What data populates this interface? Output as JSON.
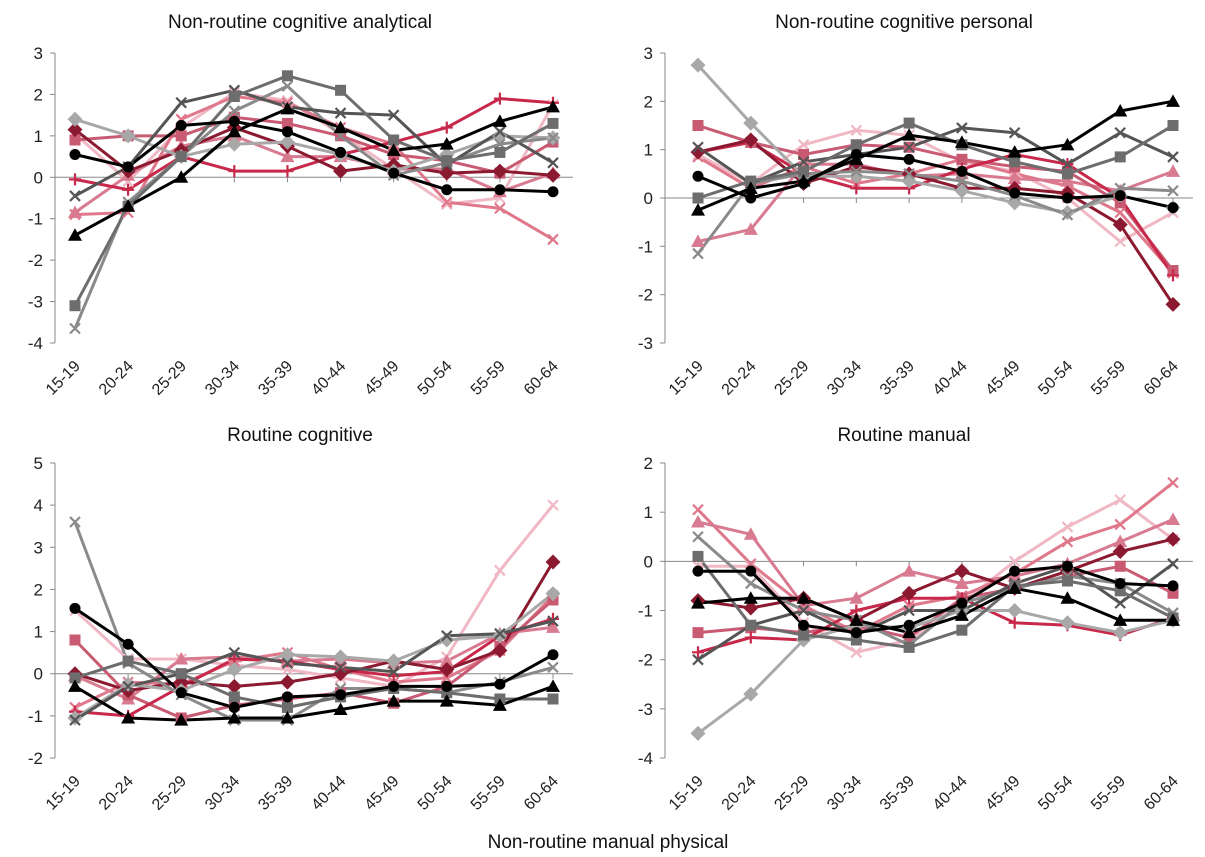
{
  "figure": {
    "bottom_caption": "Non-routine manual physical"
  },
  "chart_data": [
    {
      "type": "line",
      "title": "Non-routine cognitive analytical",
      "xlabel": "",
      "ylabel": "",
      "ylim": [
        -4,
        3
      ],
      "yticks": [
        "-4",
        "-3",
        "-2",
        "-1",
        "0",
        "1",
        "2",
        "3"
      ],
      "categories": [
        "15-19",
        "20-24",
        "25-29",
        "30-34",
        "35-39",
        "40-44",
        "45-49",
        "50-54",
        "55-59",
        "60-64"
      ],
      "grid": false,
      "series": [
        {
          "color": "#000000",
          "marker": "circle",
          "values": [
            0.55,
            0.25,
            1.25,
            1.35,
            1.1,
            0.6,
            0.1,
            -0.3,
            -0.3,
            -0.35
          ]
        },
        {
          "color": "#000000",
          "marker": "triangle",
          "values": [
            -1.4,
            -0.7,
            0.0,
            1.1,
            1.65,
            1.2,
            0.65,
            0.8,
            1.35,
            1.7
          ]
        },
        {
          "color": "#6d6d6d",
          "marker": "square",
          "values": [
            -3.1,
            -0.7,
            0.5,
            1.95,
            2.45,
            2.1,
            0.9,
            0.4,
            0.6,
            1.3
          ]
        },
        {
          "color": "#555555",
          "marker": "x",
          "values": [
            -0.45,
            0.25,
            1.8,
            2.1,
            1.7,
            1.55,
            1.5,
            0.3,
            1.1,
            0.35
          ]
        },
        {
          "color": "#8a8a8a",
          "marker": "x",
          "values": [
            -3.65,
            -0.6,
            0.5,
            1.6,
            2.2,
            1.0,
            0.05,
            0.35,
            0.8,
            0.95
          ]
        },
        {
          "color": "#a8a8a8",
          "marker": "diamond",
          "values": [
            1.4,
            1.0,
            0.5,
            0.8,
            0.85,
            0.55,
            0.15,
            0.55,
            1.0,
            0.95
          ]
        },
        {
          "color": "#8b1a30",
          "marker": "diamond",
          "values": [
            1.15,
            0.15,
            0.65,
            1.2,
            0.75,
            0.15,
            0.3,
            0.1,
            0.15,
            0.05
          ]
        },
        {
          "color": "#c8284a",
          "marker": "plus",
          "values": [
            -0.05,
            -0.3,
            0.5,
            0.15,
            0.15,
            0.55,
            0.85,
            1.2,
            1.9,
            1.8
          ]
        },
        {
          "color": "#c85a72",
          "marker": "square",
          "values": [
            0.9,
            1.0,
            1.0,
            1.45,
            1.3,
            1.0,
            0.55,
            0.4,
            0.1,
            0.85
          ]
        },
        {
          "color": "#d87a90",
          "marker": "triangle",
          "values": [
            -0.85,
            0.05,
            0.75,
            1.0,
            0.5,
            0.5,
            0.2,
            0.2,
            -0.35,
            0.1
          ]
        },
        {
          "color": "#e0788c",
          "marker": "x",
          "values": [
            -0.9,
            -0.85,
            1.4,
            1.95,
            1.8,
            1.2,
            0.8,
            -0.6,
            -0.75,
            -1.5
          ]
        },
        {
          "color": "#f0b8c4",
          "marker": "x",
          "values": [
            1.05,
            -0.1,
            1.2,
            2.05,
            1.85,
            1.05,
            0.2,
            -0.65,
            -0.5,
            1.75
          ]
        }
      ]
    },
    {
      "type": "line",
      "title": "Non-routine cognitive personal",
      "xlabel": "",
      "ylabel": "",
      "ylim": [
        -3,
        3
      ],
      "yticks": [
        "-3",
        "-2",
        "-1",
        "0",
        "1",
        "2",
        "3"
      ],
      "categories": [
        "15-19",
        "20-24",
        "25-29",
        "30-34",
        "35-39",
        "40-44",
        "45-49",
        "50-54",
        "55-59",
        "60-64"
      ],
      "grid": false,
      "series": [
        {
          "color": "#000000",
          "marker": "circle",
          "values": [
            0.45,
            0.0,
            0.3,
            0.9,
            0.8,
            0.55,
            0.1,
            0.0,
            0.05,
            -0.2
          ]
        },
        {
          "color": "#000000",
          "marker": "triangle",
          "values": [
            -0.25,
            0.2,
            0.35,
            0.8,
            1.3,
            1.15,
            0.95,
            1.1,
            1.8,
            2.0
          ]
        },
        {
          "color": "#6d6d6d",
          "marker": "square",
          "values": [
            0.0,
            0.35,
            0.55,
            1.1,
            1.55,
            1.1,
            0.75,
            0.5,
            0.85,
            1.5
          ]
        },
        {
          "color": "#555555",
          "marker": "x",
          "values": [
            1.05,
            0.3,
            0.75,
            0.9,
            1.05,
            1.45,
            1.35,
            0.7,
            1.35,
            0.85
          ]
        },
        {
          "color": "#8a8a8a",
          "marker": "x",
          "values": [
            -1.15,
            0.3,
            0.5,
            0.55,
            0.5,
            0.35,
            0.05,
            -0.35,
            0.2,
            0.15
          ]
        },
        {
          "color": "#a8a8a8",
          "marker": "diamond",
          "values": [
            2.75,
            1.55,
            0.45,
            0.45,
            0.35,
            0.15,
            -0.1,
            -0.3,
            0.05,
            -0.2
          ]
        },
        {
          "color": "#8b1a30",
          "marker": "diamond",
          "values": [
            0.95,
            1.2,
            0.3,
            0.65,
            0.5,
            0.2,
            0.2,
            0.1,
            -0.55,
            -2.2
          ]
        },
        {
          "color": "#c8284a",
          "marker": "plus",
          "values": [
            0.95,
            1.15,
            0.5,
            0.2,
            0.2,
            0.6,
            0.9,
            0.7,
            0.0,
            -1.6
          ]
        },
        {
          "color": "#c85a72",
          "marker": "square",
          "values": [
            1.5,
            1.15,
            0.9,
            1.1,
            1.05,
            0.8,
            0.65,
            0.55,
            -0.1,
            -1.5
          ]
        },
        {
          "color": "#d87a90",
          "marker": "triangle",
          "values": [
            -0.9,
            -0.65,
            0.7,
            0.7,
            0.45,
            0.5,
            0.4,
            0.35,
            0.15,
            0.55
          ]
        },
        {
          "color": "#e0788c",
          "marker": "x",
          "values": [
            0.85,
            0.2,
            0.65,
            0.3,
            0.5,
            0.8,
            0.5,
            0.25,
            -0.3,
            -1.55
          ]
        },
        {
          "color": "#f0b8c4",
          "marker": "x",
          "values": [
            0.9,
            0.3,
            1.1,
            1.4,
            1.3,
            0.75,
            0.55,
            0.0,
            -0.9,
            -0.3
          ]
        }
      ]
    },
    {
      "type": "line",
      "title": "Routine cognitive",
      "xlabel": "",
      "ylabel": "",
      "ylim": [
        -2,
        5
      ],
      "yticks": [
        "-2",
        "-1",
        "0",
        "1",
        "2",
        "3",
        "4",
        "5"
      ],
      "categories": [
        "15-19",
        "20-24",
        "25-29",
        "30-34",
        "35-39",
        "40-44",
        "45-49",
        "50-54",
        "55-59",
        "60-64"
      ],
      "grid": false,
      "series": [
        {
          "color": "#000000",
          "marker": "circle",
          "values": [
            1.55,
            0.7,
            -0.45,
            -0.8,
            -0.55,
            -0.5,
            -0.3,
            -0.3,
            -0.25,
            0.45
          ]
        },
        {
          "color": "#000000",
          "marker": "triangle",
          "values": [
            -0.3,
            -1.05,
            -1.1,
            -1.05,
            -1.05,
            -0.85,
            -0.65,
            -0.65,
            -0.75,
            -0.3
          ]
        },
        {
          "color": "#6d6d6d",
          "marker": "square",
          "values": [
            -0.1,
            0.3,
            0.0,
            -0.55,
            -0.8,
            -0.55,
            -0.35,
            -0.45,
            -0.6,
            -0.6
          ]
        },
        {
          "color": "#555555",
          "marker": "x",
          "values": [
            -1.1,
            -0.3,
            0.0,
            0.5,
            0.25,
            0.15,
            0.05,
            0.9,
            0.95,
            1.25
          ]
        },
        {
          "color": "#8a8a8a",
          "marker": "x",
          "values": [
            3.6,
            0.25,
            -0.5,
            -1.1,
            -1.1,
            -0.35,
            -0.35,
            -0.45,
            -0.2,
            0.15
          ]
        },
        {
          "color": "#a8a8a8",
          "marker": "diamond",
          "values": [
            -1.05,
            -0.25,
            -0.4,
            0.1,
            0.45,
            0.4,
            0.3,
            0.8,
            0.9,
            1.9
          ]
        },
        {
          "color": "#8b1a30",
          "marker": "diamond",
          "values": [
            0.0,
            -0.4,
            -0.2,
            -0.3,
            -0.2,
            0.0,
            0.3,
            0.1,
            0.55,
            2.65
          ]
        },
        {
          "color": "#c8284a",
          "marker": "plus",
          "values": [
            -0.9,
            -1.0,
            -0.3,
            0.35,
            0.3,
            0.1,
            -0.05,
            0.05,
            0.9,
            1.3
          ]
        },
        {
          "color": "#c85a72",
          "marker": "square",
          "values": [
            0.8,
            -0.5,
            -1.05,
            -0.75,
            -0.6,
            -0.45,
            -0.7,
            -0.3,
            0.65,
            1.75
          ]
        },
        {
          "color": "#d87a90",
          "marker": "triangle",
          "values": [
            -0.05,
            -0.6,
            0.35,
            0.4,
            0.3,
            0.35,
            0.25,
            0.3,
            0.95,
            1.1
          ]
        },
        {
          "color": "#e0788c",
          "marker": "x",
          "values": [
            -0.8,
            -0.2,
            -0.25,
            0.3,
            0.5,
            0.1,
            -0.2,
            -0.1,
            0.55,
            1.85
          ]
        },
        {
          "color": "#f0b8c4",
          "marker": "x",
          "values": [
            1.5,
            0.35,
            0.35,
            0.2,
            0.1,
            -0.1,
            -0.3,
            0.4,
            2.45,
            4.0
          ]
        }
      ]
    },
    {
      "type": "line",
      "title": "Routine manual",
      "xlabel": "",
      "ylabel": "",
      "ylim": [
        -4,
        2
      ],
      "yticks": [
        "-4",
        "-3",
        "-2",
        "-1",
        "0",
        "1",
        "2"
      ],
      "categories": [
        "15-19",
        "20-24",
        "25-29",
        "30-34",
        "35-39",
        "40-44",
        "45-49",
        "50-54",
        "55-59",
        "60-64"
      ],
      "grid": false,
      "series": [
        {
          "color": "#000000",
          "marker": "circle",
          "values": [
            -0.2,
            -0.2,
            -1.3,
            -1.45,
            -1.3,
            -0.85,
            -0.2,
            -0.1,
            -0.45,
            -0.5
          ]
        },
        {
          "color": "#000000",
          "marker": "triangle",
          "values": [
            -0.85,
            -0.75,
            -0.75,
            -1.2,
            -1.45,
            -1.1,
            -0.55,
            -0.75,
            -1.2,
            -1.2
          ]
        },
        {
          "color": "#6d6d6d",
          "marker": "square",
          "values": [
            0.1,
            -1.3,
            -1.5,
            -1.6,
            -1.75,
            -1.4,
            -0.5,
            -0.4,
            -0.6,
            -1.15
          ]
        },
        {
          "color": "#555555",
          "marker": "x",
          "values": [
            -2.0,
            -1.3,
            -1.0,
            -1.5,
            -1.0,
            -1.0,
            -0.45,
            -0.1,
            -0.85,
            -0.05
          ]
        },
        {
          "color": "#8a8a8a",
          "marker": "x",
          "values": [
            0.5,
            -0.45,
            -1.0,
            -1.2,
            -1.7,
            -0.85,
            -0.55,
            -0.3,
            -0.45,
            -1.05
          ]
        },
        {
          "color": "#a8a8a8",
          "marker": "diamond",
          "values": [
            -3.5,
            -2.7,
            -1.6,
            -1.3,
            -1.35,
            -1.0,
            -1.0,
            -1.25,
            -1.45,
            -1.2
          ]
        },
        {
          "color": "#8b1a30",
          "marker": "diamond",
          "values": [
            -0.8,
            -0.95,
            -0.75,
            -1.2,
            -0.65,
            -0.2,
            -0.55,
            -0.2,
            0.2,
            0.45
          ]
        },
        {
          "color": "#c8284a",
          "marker": "plus",
          "values": [
            -1.85,
            -1.55,
            -1.6,
            -1.0,
            -0.75,
            -0.75,
            -1.25,
            -1.3,
            -1.5,
            -1.15
          ]
        },
        {
          "color": "#c85a72",
          "marker": "square",
          "values": [
            -1.45,
            -1.35,
            -1.45,
            -1.3,
            -1.55,
            -0.75,
            -0.55,
            -0.3,
            -0.1,
            -0.65
          ]
        },
        {
          "color": "#d87a90",
          "marker": "triangle",
          "values": [
            0.8,
            0.55,
            -0.9,
            -0.75,
            -0.2,
            -0.45,
            -0.3,
            -0.05,
            0.4,
            0.85
          ]
        },
        {
          "color": "#e0788c",
          "marker": "x",
          "values": [
            1.05,
            -0.05,
            -0.9,
            -1.45,
            -0.9,
            -0.7,
            -0.25,
            0.4,
            0.75,
            1.6
          ]
        },
        {
          "color": "#f0b8c4",
          "marker": "x",
          "values": [
            -0.1,
            -0.1,
            -1.25,
            -1.85,
            -1.6,
            -0.85,
            0.0,
            0.7,
            1.25,
            0.45
          ]
        }
      ]
    }
  ]
}
